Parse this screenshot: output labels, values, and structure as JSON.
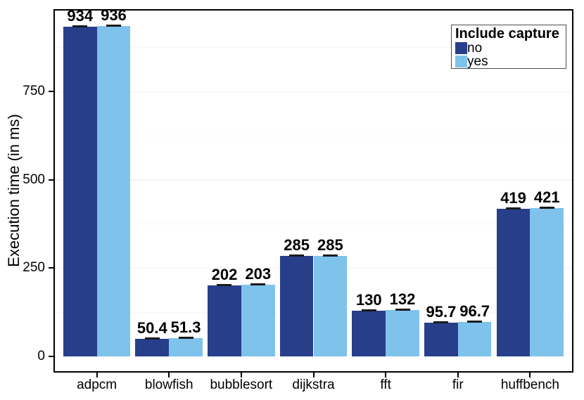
{
  "chart_data": {
    "type": "bar",
    "title": "",
    "xlabel": "",
    "ylabel": "Execution time (in ms)",
    "categories": [
      "adpcm",
      "blowfish",
      "bubblesort",
      "dijkstra",
      "fft",
      "fir",
      "huffbench"
    ],
    "series": [
      {
        "name": "no",
        "color": "#273E8A",
        "values": [
          934,
          50.4,
          202,
          285,
          130,
          95.7,
          419
        ]
      },
      {
        "name": "yes",
        "color": "#7FC2EC",
        "values": [
          936,
          51.3,
          203,
          285,
          132,
          96.7,
          421
        ]
      }
    ],
    "bar_value_labels": [
      "934",
      "50.4",
      "202",
      "285",
      "130",
      "95.7",
      "419",
      "936",
      "51.3",
      "203",
      "285",
      "132",
      "96.7",
      "421"
    ],
    "error_bars": {
      "show": true
    },
    "yticks": [
      0,
      250,
      500,
      750
    ],
    "ylim": [
      -46,
      984
    ],
    "grid": {
      "major": [
        250,
        500,
        750
      ],
      "minor": [
        125,
        375,
        625,
        875
      ]
    },
    "legend": {
      "title": "Include capture",
      "items": [
        "no",
        "yes"
      ],
      "position": "top-right-inside"
    },
    "colors": {
      "major_grid": "#f2f2f2",
      "minor_grid": "#f7f7f7",
      "panel_border": "#000000",
      "error_bar": "#1a1a1a",
      "text": "#000000",
      "background": "#ffffff"
    }
  }
}
